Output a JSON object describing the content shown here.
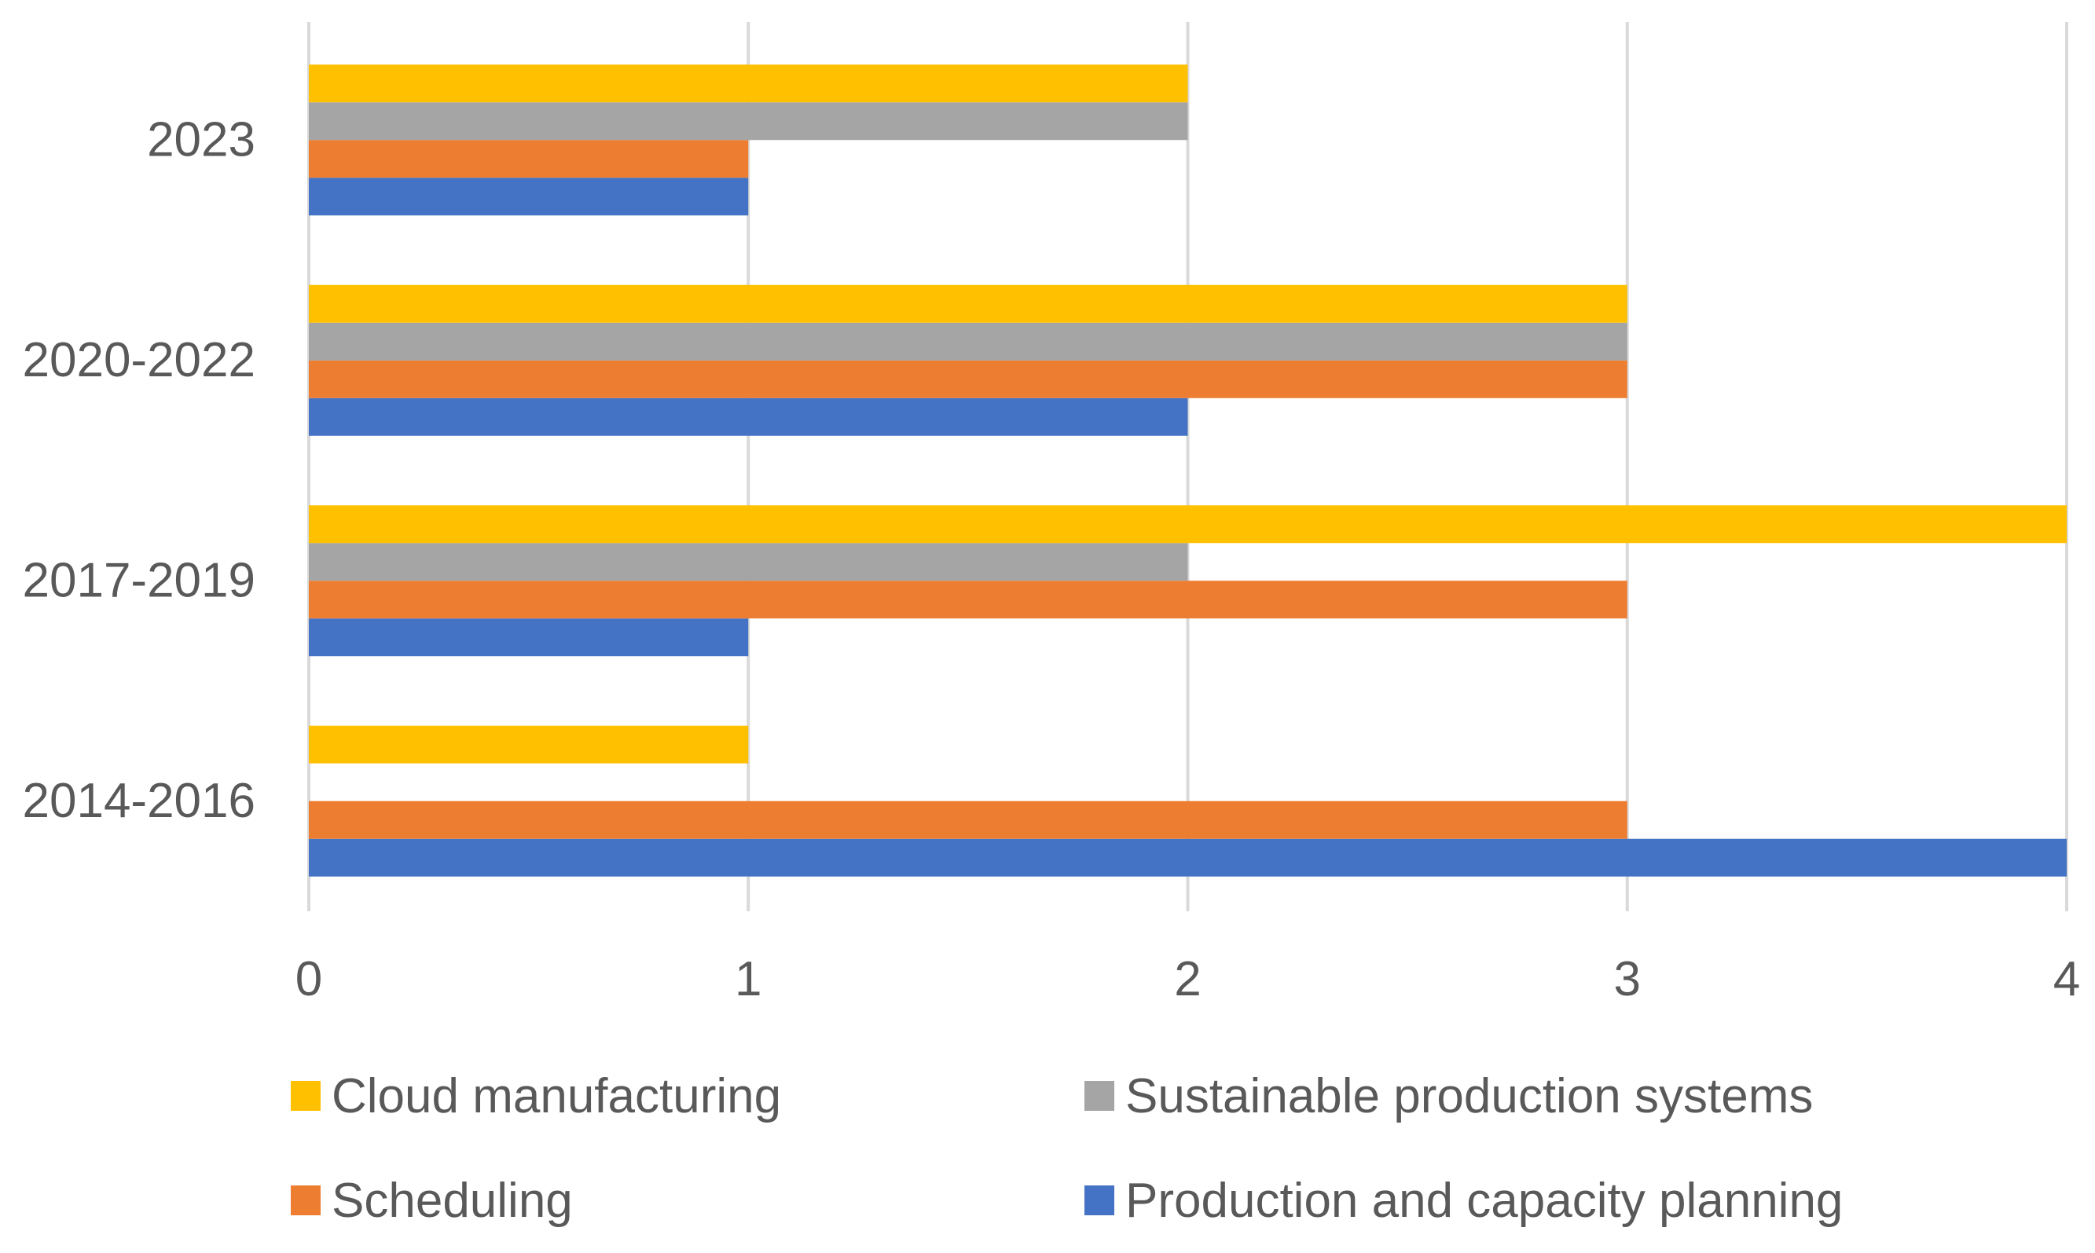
{
  "chart_data": {
    "type": "bar",
    "orientation": "horizontal",
    "title": "",
    "xlabel": "",
    "ylabel": "",
    "categories": [
      "2014-2016",
      "2017-2019",
      "2020-2022",
      "2023"
    ],
    "xlim": [
      0,
      4
    ],
    "xticks": [
      "0",
      "1",
      "2",
      "3",
      "4"
    ],
    "grid": true,
    "legend_position": "bottom",
    "series": [
      {
        "name": "Production and capacity planning",
        "color": "#4472C4",
        "values": [
          4,
          1,
          2,
          1
        ]
      },
      {
        "name": "Scheduling",
        "color": "#ED7D31",
        "values": [
          3,
          3,
          3,
          1
        ]
      },
      {
        "name": "Sustainable production systems",
        "color": "#A5A5A5",
        "values": [
          0,
          2,
          3,
          2
        ]
      },
      {
        "name": "Cloud manufacturing",
        "color": "#FFC000",
        "values": [
          1,
          4,
          3,
          2
        ]
      }
    ],
    "legend_order": [
      "Cloud manufacturing",
      "Sustainable production systems",
      "Scheduling",
      "Production and capacity planning"
    ],
    "gridline_color": "#D9D9D9"
  }
}
